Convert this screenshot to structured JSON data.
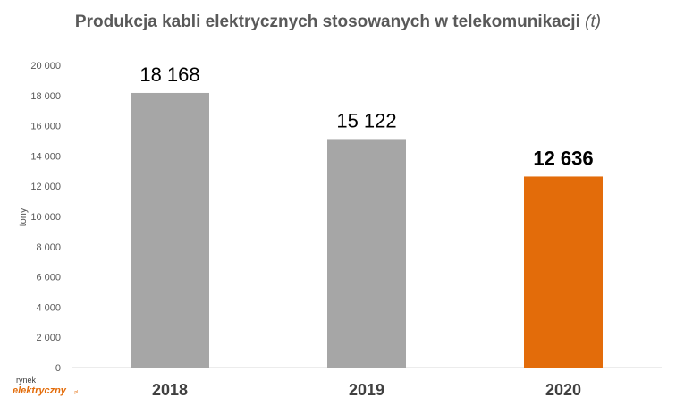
{
  "title": "Produkcja kabli elektrycznych stosowanych w telekomunikacji",
  "title_unit": "(t)",
  "logo": {
    "line1": "rynek",
    "line2": "elektryczny",
    "suffix": ".pl"
  },
  "colors": {
    "bar": "#a6a6a6",
    "highlight": "#e36c0a",
    "axis": "#d9d9d9",
    "text": "#595959"
  },
  "chart_data": {
    "type": "bar",
    "categories": [
      "2018",
      "2019",
      "2020"
    ],
    "values": [
      18168,
      15122,
      12636
    ],
    "value_labels": [
      "18 168",
      "15 122",
      "12 636"
    ],
    "highlight_index": 2,
    "title": "Produkcja kabli elektrycznych stosowanych w telekomunikacji (t)",
    "xlabel": "",
    "ylabel": "tony",
    "ylim": [
      0,
      20000
    ],
    "yticks": [
      0,
      2000,
      4000,
      6000,
      8000,
      10000,
      12000,
      14000,
      16000,
      18000,
      20000
    ],
    "ytick_labels": [
      "0",
      "2 000",
      "4 000",
      "6 000",
      "8 000",
      "10 000",
      "12 000",
      "14 000",
      "16 000",
      "18 000",
      "20 000"
    ],
    "grid": false,
    "legend": "none"
  }
}
